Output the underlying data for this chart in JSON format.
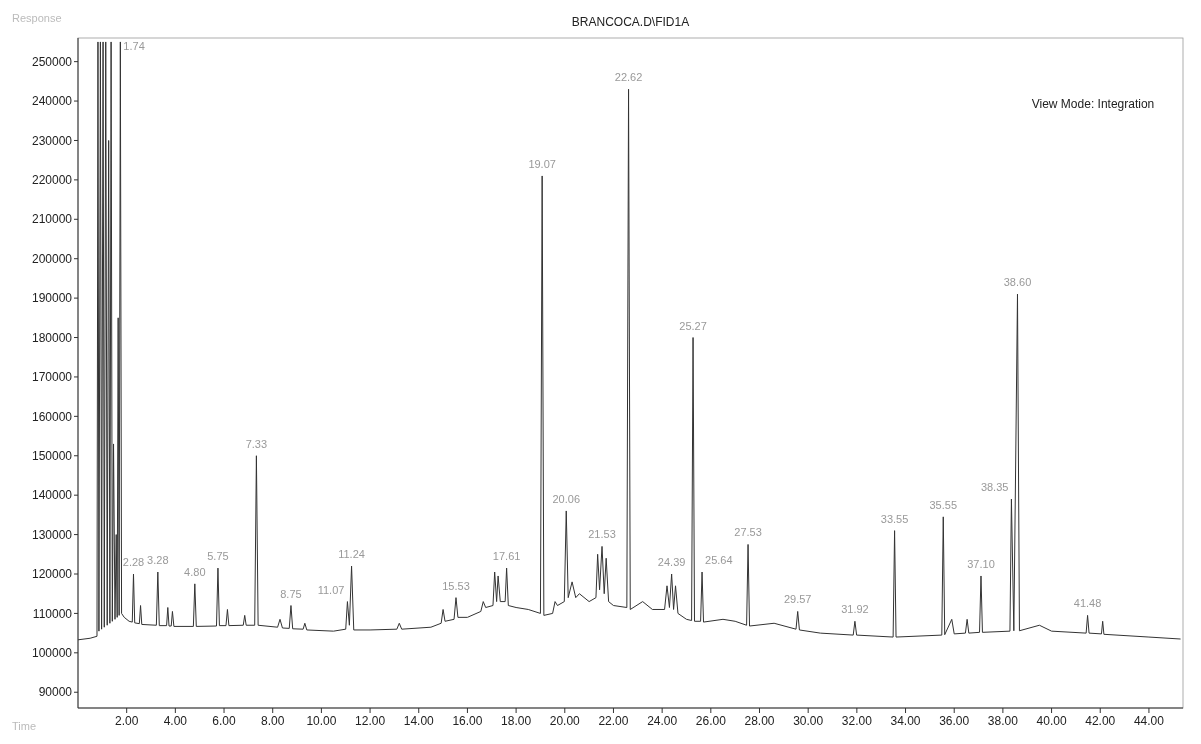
{
  "chart_data": {
    "type": "line",
    "title": "BRANCOCA.D\\FID1A",
    "xlabel": "Time",
    "ylabel": "Response",
    "xlim": [
      0,
      45.4
    ],
    "ylim": [
      86000,
      256000
    ],
    "xticks": [
      {
        "value": 2,
        "label": "2.00"
      },
      {
        "value": 4,
        "label": "4.00"
      },
      {
        "value": 6,
        "label": "6.00"
      },
      {
        "value": 8,
        "label": "8.00"
      },
      {
        "value": 10,
        "label": "10.00"
      },
      {
        "value": 12,
        "label": "12.00"
      },
      {
        "value": 14,
        "label": "14.00"
      },
      {
        "value": 16,
        "label": "16.00"
      },
      {
        "value": 18,
        "label": "18.00"
      },
      {
        "value": 20,
        "label": "20.00"
      },
      {
        "value": 22,
        "label": "22.00"
      },
      {
        "value": 24,
        "label": "24.00"
      },
      {
        "value": 26,
        "label": "26.00"
      },
      {
        "value": 28,
        "label": "28.00"
      },
      {
        "value": 30,
        "label": "30.00"
      },
      {
        "value": 32,
        "label": "32.00"
      },
      {
        "value": 34,
        "label": "34.00"
      },
      {
        "value": 36,
        "label": "36.00"
      },
      {
        "value": 38,
        "label": "38.00"
      },
      {
        "value": 40,
        "label": "40.00"
      },
      {
        "value": 42,
        "label": "42.00"
      },
      {
        "value": 44,
        "label": "44.00"
      }
    ],
    "yticks": [
      90000,
      100000,
      110000,
      120000,
      130000,
      140000,
      150000,
      160000,
      170000,
      180000,
      190000,
      200000,
      210000,
      220000,
      230000,
      240000,
      250000
    ],
    "x": [
      0,
      0.5,
      0.78,
      0.82,
      0.86,
      0.92,
      0.97,
      1.03,
      1.08,
      1.14,
      1.2,
      1.26,
      1.31,
      1.36,
      1.41,
      1.46,
      1.52,
      1.57,
      1.61,
      1.65,
      1.69,
      1.74,
      1.79,
      1.9,
      2.1,
      2.23,
      2.28,
      2.33,
      2.52,
      2.57,
      2.62,
      3.22,
      3.28,
      3.34,
      3.64,
      3.69,
      3.74,
      3.83,
      3.88,
      3.94,
      4.74,
      4.8,
      4.86,
      5.69,
      5.75,
      5.81,
      6.08,
      6.14,
      6.2,
      6.79,
      6.85,
      6.91,
      7.26,
      7.33,
      7.4,
      8.2,
      8.3,
      8.4,
      8.68,
      8.75,
      8.82,
      9.25,
      9.32,
      9.4,
      10.5,
      11.0,
      11.07,
      11.15,
      11.24,
      11.33,
      12.0,
      13.1,
      13.2,
      13.3,
      14.5,
      14.92,
      15.0,
      15.08,
      15.45,
      15.53,
      15.61,
      16.0,
      16.55,
      16.65,
      16.75,
      17.05,
      17.12,
      17.2,
      17.26,
      17.35,
      17.55,
      17.61,
      17.68,
      18.0,
      18.5,
      19.0,
      19.07,
      19.14,
      19.5,
      19.6,
      19.7,
      19.98,
      20.06,
      20.14,
      20.3,
      20.45,
      20.6,
      21.0,
      21.28,
      21.35,
      21.43,
      21.53,
      21.62,
      21.7,
      21.8,
      22.0,
      22.55,
      22.62,
      22.69,
      23.2,
      23.6,
      24.1,
      24.2,
      24.3,
      24.39,
      24.47,
      24.55,
      24.65,
      25.0,
      25.21,
      25.27,
      25.33,
      25.58,
      25.64,
      25.7,
      26.5,
      27.0,
      27.47,
      27.53,
      27.59,
      28.6,
      29.5,
      29.57,
      29.64,
      30.5,
      31.85,
      31.92,
      31.99,
      33.49,
      33.55,
      33.61,
      35.49,
      35.55,
      35.61,
      35.9,
      36.0,
      36.46,
      36.53,
      36.6,
      37.04,
      37.1,
      37.16,
      38.29,
      38.35,
      38.45,
      38.6,
      38.68,
      39.5,
      40.0,
      41.42,
      41.48,
      41.54,
      42.05,
      42.1,
      42.15,
      44.0,
      45.3
    ],
    "series": [
      {
        "color": "#333333",
        "values": [
          103300,
          103700,
          104200,
          255000,
          105500,
          255000,
          106000,
          255000,
          106500,
          255000,
          107000,
          230000,
          107500,
          255000,
          108000,
          153000,
          108500,
          130000,
          109000,
          185000,
          109500,
          255000,
          110000,
          109000,
          108000,
          107800,
          120000,
          107600,
          107400,
          112000,
          107200,
          107000,
          120500,
          106900,
          106900,
          111500,
          106800,
          106800,
          110500,
          106700,
          106700,
          117500,
          106700,
          106800,
          121500,
          106900,
          106900,
          111000,
          106900,
          107000,
          109500,
          107000,
          107000,
          150000,
          107000,
          106500,
          108500,
          106300,
          106200,
          112000,
          106100,
          106000,
          107500,
          105800,
          105500,
          106000,
          113000,
          107000,
          122000,
          105800,
          105800,
          106000,
          107500,
          106000,
          106500,
          107500,
          111000,
          108000,
          108500,
          114000,
          109000,
          109000,
          110500,
          113000,
          111500,
          112000,
          120500,
          113000,
          119500,
          113000,
          113000,
          121500,
          112000,
          111500,
          111000,
          110000,
          221000,
          109500,
          110000,
          113000,
          112000,
          113000,
          136000,
          114000,
          118000,
          114000,
          115000,
          113000,
          114000,
          125000,
          116000,
          127000,
          115000,
          124000,
          113000,
          112000,
          111500,
          243000,
          111000,
          113000,
          111000,
          111000,
          117000,
          111500,
          120000,
          111000,
          117000,
          110000,
          108500,
          108200,
          180000,
          108000,
          108000,
          120500,
          107800,
          108500,
          108000,
          107000,
          127500,
          106800,
          107500,
          106000,
          110500,
          105800,
          105000,
          104500,
          108000,
          104500,
          104000,
          131000,
          104000,
          104500,
          134500,
          104600,
          108500,
          104800,
          105000,
          108500,
          105000,
          105200,
          119500,
          105200,
          105500,
          139000,
          105600,
          191000,
          105600,
          107000,
          105500,
          105000,
          109500,
          105000,
          104800,
          108000,
          104700,
          104000,
          103500
        ]
      }
    ],
    "annotations": [
      "View Mode: Integration",
      {
        "text": "1.74",
        "x": 1.74,
        "y": 255000
      },
      {
        "text": "2.28",
        "x": 2.28,
        "y": 120000
      },
      {
        "text": "3.28",
        "x": 3.28,
        "y": 120500
      },
      {
        "text": "4.80",
        "x": 4.8,
        "y": 117500
      },
      {
        "text": "5.75",
        "x": 5.75,
        "y": 121500
      },
      {
        "text": "7.33",
        "x": 7.33,
        "y": 150000
      },
      {
        "text": "8.75",
        "x": 8.75,
        "y": 112000
      },
      {
        "text": "11.07",
        "x": 11.07,
        "y": 113000
      },
      {
        "text": "11.24",
        "x": 11.24,
        "y": 122000
      },
      {
        "text": "15.53",
        "x": 15.53,
        "y": 114000
      },
      {
        "text": "17.61",
        "x": 17.61,
        "y": 121500
      },
      {
        "text": "19.07",
        "x": 19.07,
        "y": 221000
      },
      {
        "text": "20.06",
        "x": 20.06,
        "y": 136000
      },
      {
        "text": "21.53",
        "x": 21.53,
        "y": 127000
      },
      {
        "text": "22.62",
        "x": 22.62,
        "y": 243000
      },
      {
        "text": "24.39",
        "x": 24.39,
        "y": 120000
      },
      {
        "text": "25.27",
        "x": 25.27,
        "y": 180000
      },
      {
        "text": "25.64",
        "x": 25.64,
        "y": 120500
      },
      {
        "text": "27.53",
        "x": 27.53,
        "y": 127500
      },
      {
        "text": "29.57",
        "x": 29.57,
        "y": 110500
      },
      {
        "text": "31.92",
        "x": 31.92,
        "y": 108000
      },
      {
        "text": "33.55",
        "x": 33.55,
        "y": 131000
      },
      {
        "text": "35.55",
        "x": 35.55,
        "y": 134500
      },
      {
        "text": "37.10",
        "x": 37.1,
        "y": 119500
      },
      {
        "text": "38.35",
        "x": 38.35,
        "y": 139000
      },
      {
        "text": "38.60",
        "x": 38.6,
        "y": 191000
      },
      {
        "text": "41.48",
        "x": 41.48,
        "y": 109500
      }
    ]
  }
}
